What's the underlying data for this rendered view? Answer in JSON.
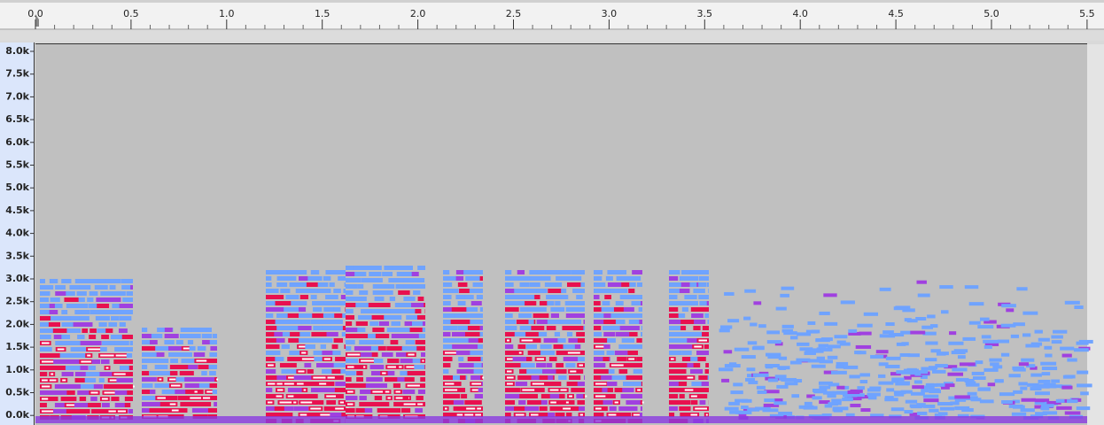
{
  "ruler": {
    "labels": [
      "0.0",
      "0.5",
      "1.0",
      "1.5",
      "2.0",
      "2.5",
      "3.0",
      "3.5",
      "4.0",
      "4.5",
      "5.0",
      "5.5"
    ]
  },
  "frequency_axis": {
    "labels": [
      "8.0k",
      "7.5k",
      "7.0k",
      "6.5k",
      "6.0k",
      "5.5k",
      "5.0k",
      "4.5k",
      "4.0k",
      "3.5k",
      "3.0k",
      "2.5k",
      "2.0k",
      "1.5k",
      "1.0k",
      "0.5k",
      "0.0k"
    ]
  }
}
